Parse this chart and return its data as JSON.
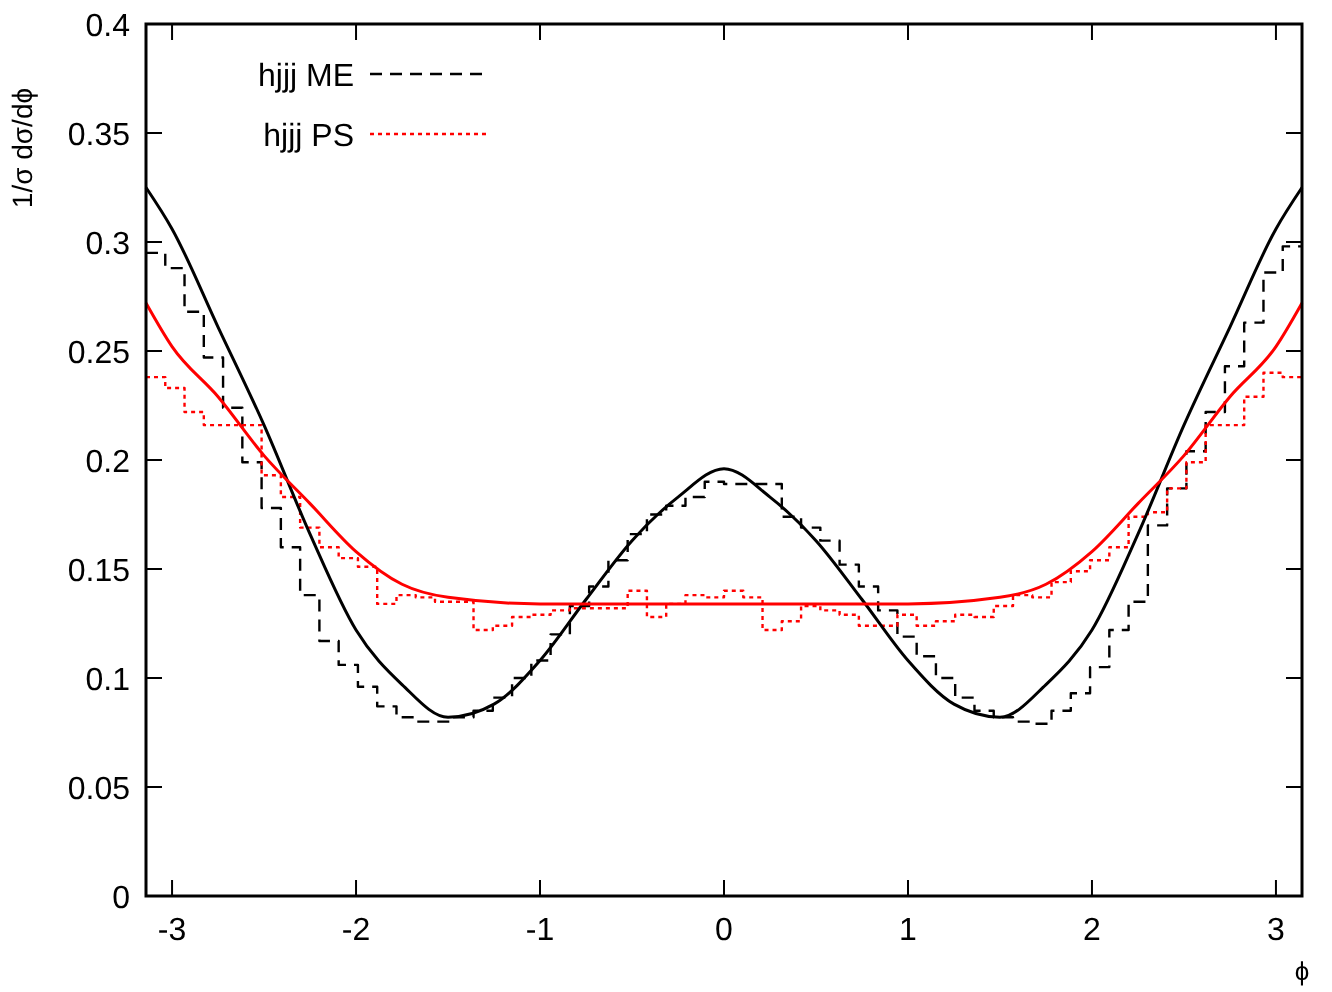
{
  "chart_data": {
    "type": "histogram",
    "xlabel": "ϕ",
    "ylabel": "1/σ dσ/dϕ",
    "bins": [
      -3.1416,
      -3.0369,
      -2.9322,
      -2.8274,
      -2.7227,
      -2.618,
      -2.5133,
      -2.4086,
      -2.3038,
      -2.1991,
      -2.0944,
      -1.9897,
      -1.885,
      -1.7802,
      -1.6755,
      -1.5708,
      -1.4661,
      -1.3614,
      -1.2566,
      -1.1519,
      -1.0472,
      -0.9425,
      -0.8378,
      -0.733,
      -0.6283,
      -0.5236,
      -0.4189,
      -0.3142,
      -0.2094,
      -0.1047,
      0,
      0.1047,
      0.2094,
      0.3142,
      0.4189,
      0.5236,
      0.6283,
      0.733,
      0.8378,
      0.9425,
      1.0472,
      1.1519,
      1.2566,
      1.3614,
      1.4661,
      1.5708,
      1.6755,
      1.7802,
      1.885,
      1.9897,
      2.0944,
      2.1991,
      2.3038,
      2.4086,
      2.5133,
      2.618,
      2.7227,
      2.8274,
      2.9322,
      3.0369,
      3.1416
    ],
    "series": [
      {
        "name": "hjjj ME",
        "color": "#000000",
        "line_style": "dashed",
        "values": [
          0.295,
          0.288,
          0.268,
          0.247,
          0.224,
          0.199,
          0.178,
          0.16,
          0.138,
          0.117,
          0.106,
          0.096,
          0.087,
          0.082,
          0.08,
          0.08,
          0.082,
          0.085,
          0.091,
          0.1,
          0.108,
          0.12,
          0.133,
          0.142,
          0.154,
          0.166,
          0.175,
          0.179,
          0.183,
          0.19,
          0.189,
          0.189,
          0.189,
          0.174,
          0.169,
          0.163,
          0.152,
          0.142,
          0.131,
          0.119,
          0.11,
          0.1,
          0.091,
          0.085,
          0.082,
          0.08,
          0.079,
          0.085,
          0.093,
          0.105,
          0.122,
          0.135,
          0.17,
          0.187,
          0.204,
          0.222,
          0.243,
          0.263,
          0.286,
          0.298
        ]
      },
      {
        "name": "hjjj PS",
        "color": "#ff0000",
        "line_style": "dotted",
        "values": [
          0.238,
          0.233,
          0.222,
          0.216,
          0.216,
          0.216,
          0.193,
          0.183,
          0.169,
          0.16,
          0.155,
          0.151,
          0.134,
          0.138,
          0.137,
          0.135,
          0.135,
          0.122,
          0.124,
          0.128,
          0.129,
          0.131,
          0.132,
          0.132,
          0.132,
          0.14,
          0.128,
          0.134,
          0.138,
          0.137,
          0.14,
          0.137,
          0.122,
          0.126,
          0.133,
          0.131,
          0.129,
          0.124,
          0.124,
          0.129,
          0.124,
          0.126,
          0.129,
          0.128,
          0.133,
          0.138,
          0.137,
          0.144,
          0.149,
          0.154,
          0.16,
          0.174,
          0.176,
          0.187,
          0.199,
          0.216,
          0.216,
          0.229,
          0.24,
          0.238
        ]
      },
      {
        "type": "line",
        "color": "#000000",
        "line_style": "solid",
        "x": [
          -3.1416,
          -3,
          -2.75,
          -2.5,
          -2.25,
          -2,
          -1.75,
          -1.5,
          -1.25,
          -1,
          -0.75,
          -0.5,
          -0.25,
          0,
          0.25,
          0.5,
          0.75,
          1,
          1.25,
          1.5,
          1.75,
          2,
          2.25,
          2.5,
          2.75,
          3,
          3.1416
        ],
        "values": [
          0.325,
          0.306,
          0.261,
          0.216,
          0.166,
          0.122,
          0.097,
          0.082,
          0.088,
          0.108,
          0.136,
          0.163,
          0.183,
          0.196,
          0.183,
          0.163,
          0.136,
          0.108,
          0.088,
          0.082,
          0.097,
          0.122,
          0.166,
          0.216,
          0.261,
          0.306,
          0.325
        ]
      },
      {
        "type": "line",
        "color": "#ff0000",
        "line_style": "solid",
        "x": [
          -3.1416,
          -3,
          -2.75,
          -2.5,
          -2.25,
          -2,
          -1.75,
          -1.5,
          -1,
          -0.5,
          0,
          0.5,
          1,
          1.5,
          1.75,
          2,
          2.25,
          2.5,
          2.75,
          3,
          3.1416
        ],
        "values": [
          0.272,
          0.252,
          0.229,
          0.202,
          0.18,
          0.158,
          0.143,
          0.137,
          0.134,
          0.134,
          0.134,
          0.134,
          0.134,
          0.137,
          0.143,
          0.158,
          0.18,
          0.202,
          0.229,
          0.252,
          0.272
        ]
      }
    ],
    "xlim": [
      -3.1416,
      3.1416
    ],
    "xticks": [
      -3,
      -2,
      -1,
      0,
      1,
      2,
      3
    ],
    "ylim": [
      0,
      0.4
    ],
    "yticks": [
      0,
      0.05,
      0.1,
      0.15,
      0.2,
      0.25,
      0.3,
      0.35,
      0.4
    ],
    "legend": "top left"
  }
}
